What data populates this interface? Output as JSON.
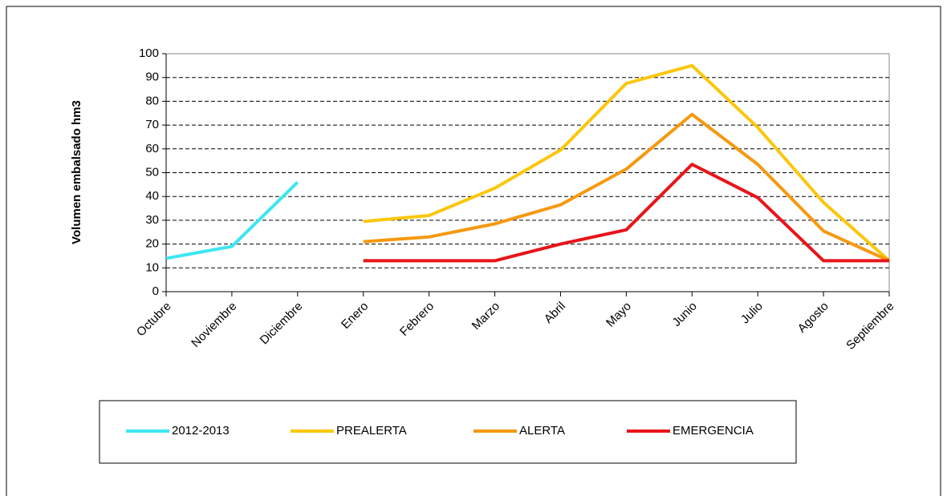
{
  "chart_data": {
    "type": "line",
    "y_label": "Volumen embalsado hm3",
    "categories": [
      "Octubre",
      "Noviembre",
      "Diciembre",
      "Enero",
      "Febrero",
      "Marzo",
      "Abril",
      "Mayo",
      "Junio",
      "Julio",
      "Agosto",
      "Septiembre"
    ],
    "series": [
      {
        "name": "2012-2013",
        "color": "#3ce6f2",
        "values": [
          14,
          19,
          46,
          null,
          null,
          null,
          null,
          null,
          null,
          null,
          null,
          null
        ]
      },
      {
        "name": "PREALERTA",
        "color": "#fbc70c",
        "values": [
          null,
          null,
          null,
          29.5,
          32,
          43.5,
          59.5,
          87.5,
          95,
          69,
          37.5,
          13
        ]
      },
      {
        "name": "ALERTA",
        "color": "#f5990f",
        "values": [
          null,
          null,
          null,
          21,
          23,
          28.5,
          36.5,
          51.5,
          74.5,
          53.5,
          25.5,
          13
        ]
      },
      {
        "name": "EMERGENCIA",
        "color": "#e8141a",
        "values": [
          null,
          null,
          null,
          13,
          13,
          13,
          20,
          26,
          53.5,
          39.5,
          13,
          13
        ]
      }
    ],
    "ylim": [
      0,
      100
    ],
    "yticks": [
      0,
      10,
      20,
      30,
      40,
      50,
      60,
      70,
      80,
      90,
      100
    ],
    "grid": true,
    "legend": "bottom"
  }
}
